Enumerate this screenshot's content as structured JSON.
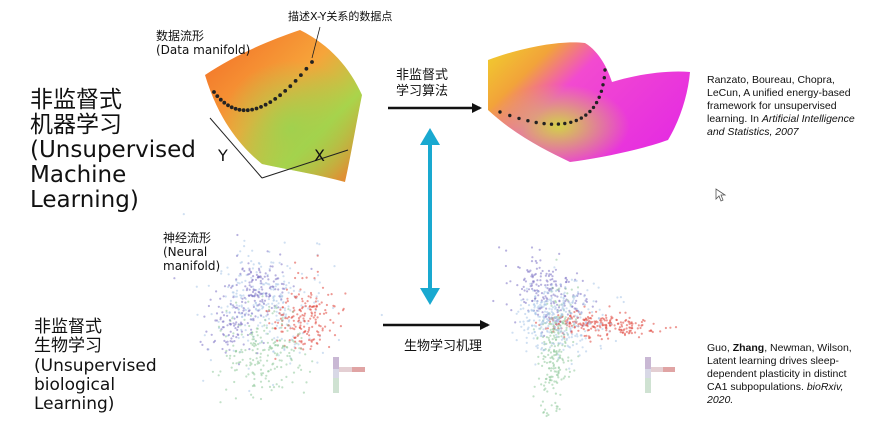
{
  "machine": {
    "title_cn": "非监督式\n机器学习",
    "title_en": "(Unsupervised\nMachine\nLearning)",
    "manifold_label": "数据流形\n(Data manifold)",
    "points_label": "描述X-Y关系的数据点",
    "axis_y": "Y",
    "axis_x": "X",
    "arrow_label": "非监督式\n学习算法",
    "reference": {
      "authors": "Ranzato, Boureau, Chopra, LeCun, A unified energy-based framework for unsupervised learning.",
      "venue_prefix": "In ",
      "venue": "Artificial Intelligence and Statistics, 2007"
    }
  },
  "biological": {
    "title_cn": "非监督式\n生物学习",
    "title_en": "(Unsupervised\nbiological\nLearning)",
    "manifold_label": "神经流形\n(Neural\nmanifold)",
    "arrow_label": "生物学习机理",
    "reference": {
      "author_first": "Guo, ",
      "author_bold": "Zhang",
      "author_rest": ", Newman, Wilson, Latent learning drives sleep-dependent plasticity in distinct CA1 subpopulations. ",
      "journal": "bioRxiv",
      "year": ", 2020."
    }
  },
  "colors": {
    "arrow_black": "#111111",
    "arrow_cyan": "#19a9d0",
    "cluster_purple": "#7e72c4",
    "cluster_red": "#e0463c",
    "cluster_green": "#8fc99a",
    "cluster_lightblue": "#a9c7e8",
    "surface_orange": "#f28a2a",
    "surface_green": "#9bd04a",
    "surface_magenta": "#ee2fd8",
    "surface_yellow": "#f2d52a"
  }
}
